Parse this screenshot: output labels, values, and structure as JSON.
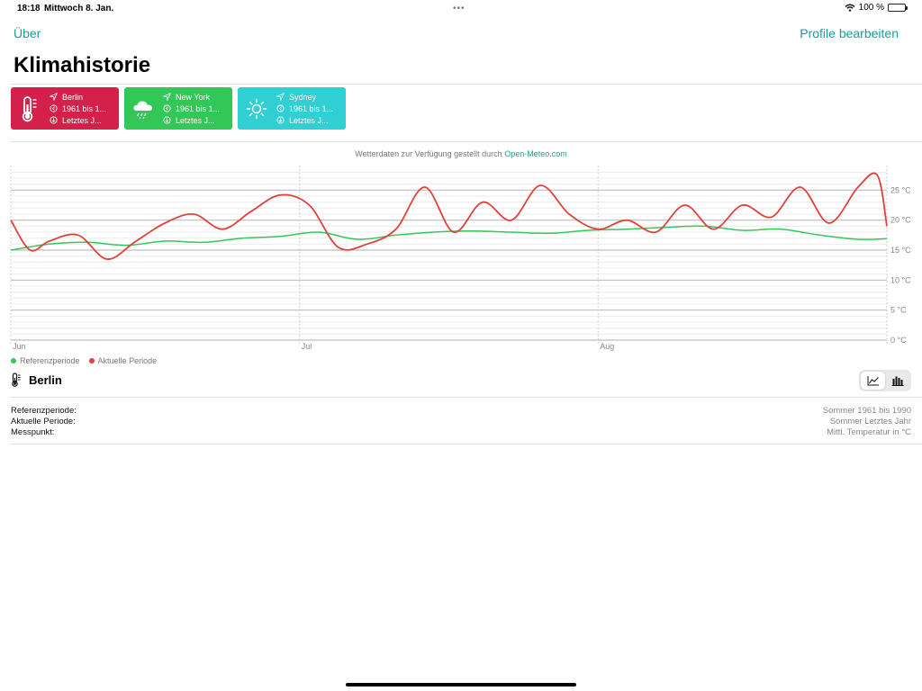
{
  "status_bar": {
    "time": "18:18",
    "date": "Mittwoch 8. Jan.",
    "battery": "100 %"
  },
  "nav": {
    "left": "Über",
    "right": "Profile bearbeiten"
  },
  "title": "Klimahistorie",
  "profiles": [
    {
      "city": "Berlin",
      "reference": "1961 bis 1...",
      "current": "Letztes J...",
      "color": "#d3214c",
      "icon": "thermometer-icon"
    },
    {
      "city": "New York",
      "reference": "1961 bis 1...",
      "current": "Letztes J...",
      "color": "#33c758",
      "icon": "cloud-rain-icon"
    },
    {
      "city": "Sydney",
      "reference": "1961 bis 1...",
      "current": "Letztes J...",
      "color": "#2fcfd3",
      "icon": "sun-icon"
    }
  ],
  "credit": {
    "prefix": "Wetterdaten zur Verfügung gestellt durch",
    "link": "Open-Meteo.com"
  },
  "chart_data": {
    "type": "line",
    "x_tick_labels": [
      "Jun",
      "Jul",
      "Aug"
    ],
    "y_tick_labels": [
      "0 °C",
      "5 °C",
      "10 °C",
      "15 °C",
      "20 °C",
      "25 °C"
    ],
    "ylim": [
      0,
      28.5
    ],
    "y_ticks": [
      0,
      5,
      10,
      15,
      20,
      25
    ],
    "x_range": [
      "Jun 1",
      "Aug 31"
    ],
    "grid": true,
    "legend_position": "bottom-left",
    "series": [
      {
        "name": "Referenzperiode",
        "color": "#34c759",
        "x": [
          "Jun 1",
          "Jun 5",
          "Jun 9",
          "Jun 13",
          "Jun 17",
          "Jun 21",
          "Jun 25",
          "Jun 29",
          "Jul 3",
          "Jul 7",
          "Jul 11",
          "Jul 15",
          "Jul 19",
          "Jul 23",
          "Jul 27",
          "Jul 31",
          "Aug 4",
          "Aug 8",
          "Aug 12",
          "Aug 16",
          "Aug 20",
          "Aug 24",
          "Aug 28",
          "Aug 31"
        ],
        "values": [
          15.0,
          16.0,
          16.3,
          15.8,
          16.5,
          16.3,
          17.0,
          17.3,
          18.0,
          16.8,
          17.5,
          18.0,
          18.2,
          18.0,
          17.8,
          18.3,
          18.5,
          18.8,
          19.0,
          18.3,
          18.5,
          17.5,
          16.8,
          16.9
        ]
      },
      {
        "name": "Aktuelle Periode",
        "color": "#e0423a",
        "x": [
          "Jun 1",
          "Jun 3",
          "Jun 5",
          "Jun 8",
          "Jun 11",
          "Jun 14",
          "Jun 17",
          "Jun 20",
          "Jun 23",
          "Jun 26",
          "Jun 29",
          "Jul 2",
          "Jul 5",
          "Jul 8",
          "Jul 11",
          "Jul 14",
          "Jul 17",
          "Jul 20",
          "Jul 23",
          "Jul 26",
          "Jul 29",
          "Aug 1",
          "Aug 4",
          "Aug 7",
          "Aug 10",
          "Aug 13",
          "Aug 16",
          "Aug 19",
          "Aug 22",
          "Aug 25",
          "Aug 28",
          "Aug 30",
          "Aug 31"
        ],
        "values": [
          20.0,
          15.0,
          16.5,
          17.5,
          13.5,
          16.5,
          19.5,
          21.0,
          18.5,
          21.5,
          24.2,
          22.5,
          15.5,
          16.0,
          18.5,
          25.5,
          18.0,
          23.0,
          20.0,
          25.8,
          21.0,
          18.5,
          20.0,
          18.0,
          22.5,
          18.5,
          22.5,
          20.5,
          25.5,
          19.5,
          25.5,
          27.5,
          19.0
        ]
      }
    ]
  },
  "section": {
    "title": "Berlin",
    "icon": "thermometer-icon"
  },
  "chart_toggle": {
    "options": [
      "line-chart-icon",
      "bar-chart-icon"
    ],
    "selected": "line-chart-icon"
  },
  "info_rows": [
    {
      "label": "Referenzperiode:",
      "value": "Sommer  1961 bis 1990"
    },
    {
      "label": "Aktuelle Periode:",
      "value": "Sommer  Letztes Jahr"
    },
    {
      "label": "Messpunkt:",
      "value": "Mittl. Temperatur  in °C"
    }
  ]
}
